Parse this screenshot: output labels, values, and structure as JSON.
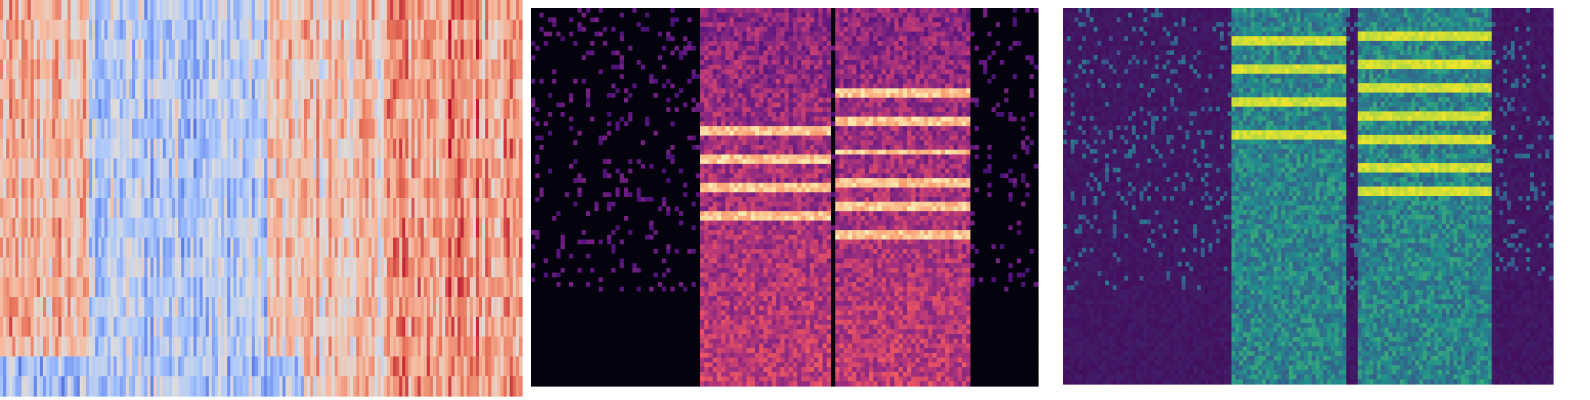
{
  "chart_data": [
    {
      "type": "heatmap",
      "title": "",
      "xlabel": "",
      "ylabel": "",
      "colormap": "coolwarm",
      "colormap_stops": [
        "#3b4cc0",
        "#6f92f3",
        "#aac7fd",
        "#dddcdc",
        "#f7b89c",
        "#e7745b",
        "#b40426"
      ],
      "rows": 20,
      "cols": 170,
      "axes_visible": false,
      "grid": false,
      "segments": [
        {
          "from": 0.0,
          "to": 0.17,
          "value": 0.64
        },
        {
          "from": 0.17,
          "to": 0.51,
          "value": 0.37
        },
        {
          "from": 0.51,
          "to": 0.58,
          "value": 0.58
        },
        {
          "from": 0.58,
          "to": 0.74,
          "value": 0.62
        },
        {
          "from": 0.74,
          "to": 1.0,
          "value": 0.74
        }
      ]
    },
    {
      "type": "heatmap",
      "title": "",
      "xlabel": "",
      "ylabel": "",
      "colormap": "magma",
      "colormap_stops": [
        "#000004",
        "#1c1044",
        "#51127c",
        "#822681",
        "#b73779",
        "#e75263",
        "#fc8961",
        "#fcfdbf"
      ],
      "rows": 80,
      "cols": 120,
      "axes_visible": false,
      "grid": false,
      "active_regions": [
        [
          0.33,
          0.59
        ],
        [
          0.6,
          0.87
        ]
      ],
      "harmonic_rows": [
        [
          0.32,
          0.4,
          0.48,
          0.55
        ],
        [
          0.22,
          0.3,
          0.38,
          0.46,
          0.53,
          0.6
        ]
      ]
    },
    {
      "type": "heatmap",
      "title": "",
      "xlabel": "",
      "ylabel": "",
      "colormap": "viridis",
      "colormap_stops": [
        "#440154",
        "#3b528b",
        "#21918c",
        "#5ec962",
        "#fde725"
      ],
      "rows": 80,
      "cols": 128,
      "axes_visible": false,
      "grid": false,
      "active_regions": [
        [
          0.34,
          0.58
        ],
        [
          0.6,
          0.88
        ]
      ],
      "harmonic_rows": [
        [
          0.08,
          0.16,
          0.25,
          0.33
        ],
        [
          0.07,
          0.14,
          0.21,
          0.28,
          0.35,
          0.42,
          0.49
        ]
      ]
    }
  ]
}
